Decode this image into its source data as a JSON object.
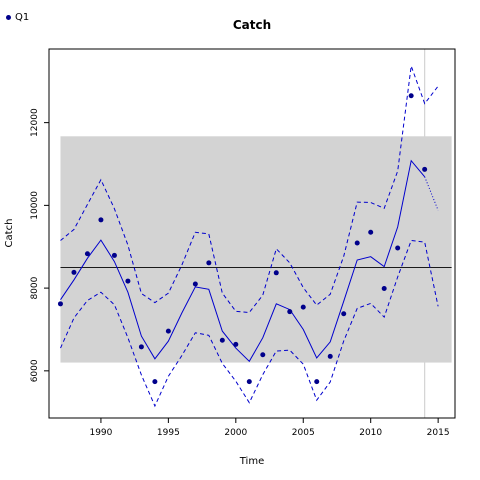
{
  "chart_data": {
    "type": "line",
    "title": "Catch",
    "xlabel": "Time",
    "ylabel": "Catch",
    "xlim": [
      1986.15,
      2016.25
    ],
    "ylim": [
      4860,
      13780
    ],
    "x_ticks": [
      1990,
      1995,
      2000,
      2005,
      2010,
      2015
    ],
    "y_ticks": [
      6000,
      8000,
      10000,
      12000
    ],
    "legend": {
      "position": "top-left",
      "entries": [
        "Q1"
      ]
    },
    "colors": {
      "series": "#0000cd",
      "points": "#00008b",
      "band": "#d3d3d3",
      "ref_line": "#000000",
      "vline": "#d3d3d3"
    },
    "band": {
      "x_start": 1987,
      "x_end": 2016,
      "y_low": 6200,
      "y_high": 11670
    },
    "reference_line": 8500,
    "vertical_line": 2014,
    "series": [
      {
        "name": "Q1",
        "style": "points",
        "x": [
          1987,
          1988,
          1989,
          1990,
          1991,
          1992,
          1993,
          1994,
          1995,
          1997,
          1998,
          1999,
          2000,
          2001,
          2002,
          2003,
          2004,
          2005,
          2006,
          2007,
          2008,
          2009,
          2010,
          2011,
          2012,
          2013,
          2014
        ],
        "values": [
          7620,
          8380,
          8830,
          9650,
          8790,
          8170,
          6580,
          5740,
          6960,
          8100,
          8610,
          6740,
          6640,
          5740,
          6390,
          8370,
          7430,
          7540,
          5740,
          6350,
          7380,
          9090,
          9350,
          7990,
          8970,
          12650,
          10870
        ]
      },
      {
        "style": "solid",
        "x": [
          1987,
          1988,
          1989,
          1990,
          1991,
          1992,
          1993,
          1994,
          1995,
          1996,
          1997,
          1998,
          1999,
          2000,
          2001,
          2002,
          2003,
          2004,
          2005,
          2006,
          2007,
          2008,
          2009,
          2010,
          2011,
          2012,
          2013,
          2014
        ],
        "values": [
          7720,
          8200,
          8720,
          9160,
          8640,
          7900,
          6840,
          6290,
          6720,
          7400,
          8030,
          7970,
          6960,
          6550,
          6230,
          6800,
          7620,
          7480,
          7000,
          6310,
          6700,
          7680,
          8680,
          8760,
          8520,
          9480,
          11080,
          10690
        ]
      },
      {
        "style": "dashed",
        "x": [
          1987,
          1988,
          1989,
          1990,
          1991,
          1992,
          1993,
          1994,
          1995,
          1996,
          1997,
          1998,
          1999,
          2000,
          2001,
          2002,
          2003,
          2004,
          2005,
          2006,
          2007,
          2008,
          2009,
          2010,
          2011,
          2012,
          2013,
          2014,
          2015
        ],
        "values": [
          9150,
          9420,
          10020,
          10620,
          9920,
          9040,
          7870,
          7650,
          7880,
          8560,
          9350,
          9310,
          7880,
          7440,
          7410,
          7830,
          8950,
          8610,
          8010,
          7590,
          7850,
          8770,
          10080,
          10070,
          9930,
          10830,
          13370,
          12460,
          12880
        ]
      },
      {
        "style": "dashed",
        "x": [
          1987,
          1988,
          1989,
          1990,
          1991,
          1992,
          1993,
          1994,
          1995,
          1996,
          1997,
          1998,
          1999,
          2000,
          2001,
          2002,
          2003,
          2004,
          2005,
          2006,
          2007,
          2008,
          2009,
          2010,
          2011,
          2012,
          2013,
          2014,
          2015
        ],
        "values": [
          6550,
          7280,
          7700,
          7900,
          7600,
          6800,
          5900,
          5150,
          5870,
          6370,
          6920,
          6860,
          6180,
          5750,
          5230,
          5910,
          6480,
          6500,
          6160,
          5290,
          5730,
          6720,
          7510,
          7630,
          7300,
          8270,
          9150,
          9110,
          7560
        ]
      },
      {
        "style": "dotted",
        "x": [
          2014,
          2015
        ],
        "values": [
          10690,
          9880
        ]
      }
    ]
  }
}
